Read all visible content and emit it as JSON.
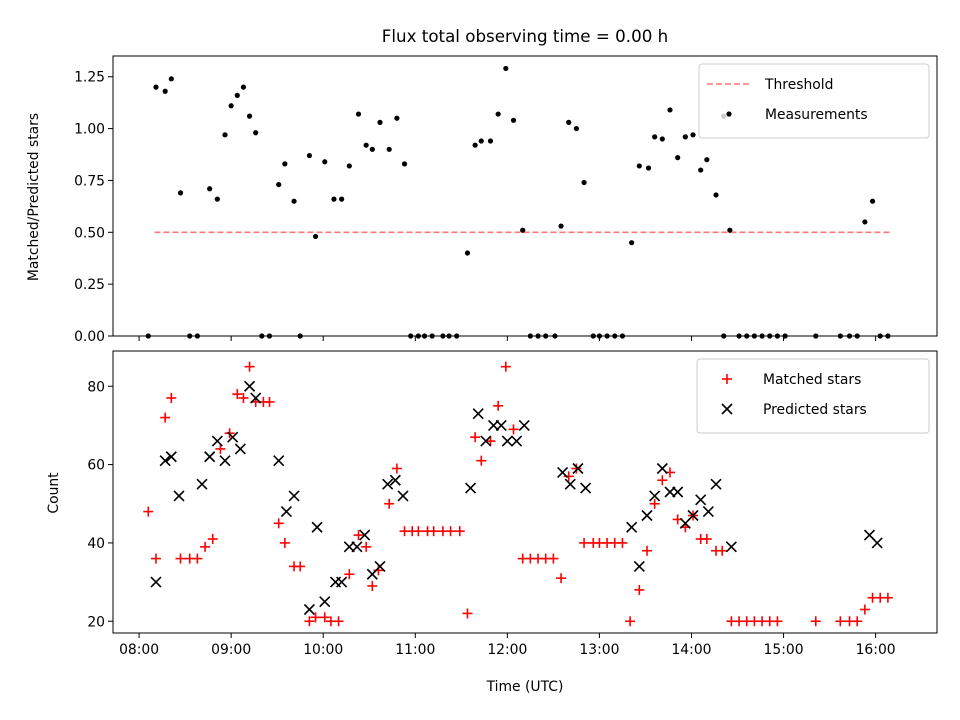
{
  "chart_data": [
    {
      "type": "scatter",
      "title": "Flux total observing time = 0.00 h",
      "xlabel": "",
      "ylabel": "Matched/Predicted stars",
      "ylim": [
        0,
        1.35
      ],
      "xlim": [
        "07:43",
        "16:40"
      ],
      "yticks": [
        "0.00",
        "0.25",
        "0.50",
        "0.75",
        "1.00",
        "1.25"
      ],
      "legend": "top-right",
      "threshold": {
        "name": "Threshold",
        "y": 0.5,
        "x_range": [
          "08:10",
          "16:10"
        ],
        "color": "#ff7777",
        "style": "dashed"
      },
      "series": [
        {
          "name": "Measurements",
          "color": "#000000",
          "points": [
            [
              "08:06",
              0.0
            ],
            [
              "08:11",
              1.2
            ],
            [
              "08:17",
              1.18
            ],
            [
              "08:21",
              1.24
            ],
            [
              "08:27",
              0.69
            ],
            [
              "08:33",
              0.0
            ],
            [
              "08:38",
              0.0
            ],
            [
              "08:46",
              0.71
            ],
            [
              "08:51",
              0.66
            ],
            [
              "08:56",
              0.97
            ],
            [
              "09:00",
              1.11
            ],
            [
              "09:04",
              1.16
            ],
            [
              "09:08",
              1.2
            ],
            [
              "09:12",
              1.06
            ],
            [
              "09:16",
              0.98
            ],
            [
              "09:20",
              0.0
            ],
            [
              "09:25",
              0.0
            ],
            [
              "09:31",
              0.73
            ],
            [
              "09:35",
              0.83
            ],
            [
              "09:41",
              0.65
            ],
            [
              "09:45",
              0.0
            ],
            [
              "09:51",
              0.87
            ],
            [
              "09:55",
              0.48
            ],
            [
              "10:01",
              0.84
            ],
            [
              "10:07",
              0.66
            ],
            [
              "10:12",
              0.66
            ],
            [
              "10:17",
              0.82
            ],
            [
              "10:23",
              1.07
            ],
            [
              "10:28",
              0.92
            ],
            [
              "10:32",
              0.9
            ],
            [
              "10:37",
              1.03
            ],
            [
              "10:43",
              0.9
            ],
            [
              "10:48",
              1.05
            ],
            [
              "10:53",
              0.83
            ],
            [
              "10:57",
              0.0
            ],
            [
              "11:02",
              0.0
            ],
            [
              "11:06",
              0.0
            ],
            [
              "11:11",
              0.0
            ],
            [
              "11:18",
              0.0
            ],
            [
              "11:22",
              0.0
            ],
            [
              "11:27",
              0.0
            ],
            [
              "11:34",
              0.4
            ],
            [
              "11:39",
              0.92
            ],
            [
              "11:43",
              0.94
            ],
            [
              "11:49",
              0.94
            ],
            [
              "11:54",
              1.07
            ],
            [
              "11:59",
              1.29
            ],
            [
              "12:04",
              1.04
            ],
            [
              "12:10",
              0.51
            ],
            [
              "12:15",
              0.0
            ],
            [
              "12:20",
              0.0
            ],
            [
              "12:25",
              0.0
            ],
            [
              "12:31",
              0.0
            ],
            [
              "12:35",
              0.53
            ],
            [
              "12:40",
              1.03
            ],
            [
              "12:45",
              1.0
            ],
            [
              "12:50",
              0.74
            ],
            [
              "12:56",
              0.0
            ],
            [
              "13:00",
              0.0
            ],
            [
              "13:05",
              0.0
            ],
            [
              "13:10",
              0.0
            ],
            [
              "13:15",
              0.0
            ],
            [
              "13:21",
              0.45
            ],
            [
              "13:26",
              0.82
            ],
            [
              "13:32",
              0.81
            ],
            [
              "13:36",
              0.96
            ],
            [
              "13:41",
              0.95
            ],
            [
              "13:46",
              1.09
            ],
            [
              "13:51",
              0.86
            ],
            [
              "13:56",
              0.96
            ],
            [
              "14:01",
              0.97
            ],
            [
              "14:06",
              0.8
            ],
            [
              "14:10",
              0.85
            ],
            [
              "14:16",
              0.68
            ],
            [
              "14:21",
              1.06
            ],
            [
              "14:21",
              0.0
            ],
            [
              "14:25",
              0.51
            ],
            [
              "14:31",
              0.0
            ],
            [
              "14:36",
              0.0
            ],
            [
              "14:41",
              0.0
            ],
            [
              "14:46",
              0.0
            ],
            [
              "14:51",
              0.0
            ],
            [
              "14:56",
              0.0
            ],
            [
              "15:01",
              0.0
            ],
            [
              "15:21",
              0.0
            ],
            [
              "15:37",
              0.0
            ],
            [
              "15:43",
              0.0
            ],
            [
              "15:48",
              0.0
            ],
            [
              "15:53",
              0.55
            ],
            [
              "15:58",
              0.65
            ],
            [
              "16:03",
              0.0
            ],
            [
              "16:08",
              0.0
            ]
          ]
        }
      ]
    },
    {
      "type": "scatter",
      "title": "",
      "xlabel": "Time (UTC)",
      "ylabel": "Count",
      "ylim": [
        17,
        89
      ],
      "xlim": [
        "07:43",
        "16:40"
      ],
      "yticks": [
        "20",
        "40",
        "60",
        "80"
      ],
      "xticks": [
        "08:00",
        "09:00",
        "10:00",
        "11:00",
        "12:00",
        "13:00",
        "14:00",
        "15:00",
        "16:00"
      ],
      "legend": "top-right",
      "series": [
        {
          "name": "Matched stars",
          "color": "#ff0000",
          "marker": "plus",
          "points": [
            [
              "08:06",
              48
            ],
            [
              "08:11",
              36
            ],
            [
              "08:17",
              72
            ],
            [
              "08:21",
              77
            ],
            [
              "08:27",
              36
            ],
            [
              "08:33",
              36
            ],
            [
              "08:38",
              36
            ],
            [
              "08:43",
              39
            ],
            [
              "08:48",
              41
            ],
            [
              "08:53",
              64
            ],
            [
              "08:59",
              68
            ],
            [
              "09:04",
              78
            ],
            [
              "09:08",
              77
            ],
            [
              "09:12",
              85
            ],
            [
              "09:16",
              76
            ],
            [
              "09:21",
              76
            ],
            [
              "09:25",
              76
            ],
            [
              "09:31",
              45
            ],
            [
              "09:35",
              40
            ],
            [
              "09:41",
              34
            ],
            [
              "09:45",
              34
            ],
            [
              "09:51",
              20
            ],
            [
              "09:55",
              21
            ],
            [
              "10:01",
              21
            ],
            [
              "10:05",
              20
            ],
            [
              "10:10",
              20
            ],
            [
              "10:17",
              32
            ],
            [
              "10:23",
              42
            ],
            [
              "10:28",
              39
            ],
            [
              "10:32",
              29
            ],
            [
              "10:36",
              33
            ],
            [
              "10:43",
              50
            ],
            [
              "10:48",
              59
            ],
            [
              "10:53",
              43
            ],
            [
              "10:58",
              43
            ],
            [
              "11:02",
              43
            ],
            [
              "11:08",
              43
            ],
            [
              "11:12",
              43
            ],
            [
              "11:18",
              43
            ],
            [
              "11:23",
              43
            ],
            [
              "11:29",
              43
            ],
            [
              "11:34",
              22
            ],
            [
              "11:39",
              67
            ],
            [
              "11:43",
              61
            ],
            [
              "11:49",
              66
            ],
            [
              "11:54",
              75
            ],
            [
              "11:59",
              85
            ],
            [
              "12:04",
              69
            ],
            [
              "12:10",
              36
            ],
            [
              "12:15",
              36
            ],
            [
              "12:20",
              36
            ],
            [
              "12:25",
              36
            ],
            [
              "12:30",
              36
            ],
            [
              "12:35",
              31
            ],
            [
              "12:40",
              57
            ],
            [
              "12:45",
              59
            ],
            [
              "12:50",
              40
            ],
            [
              "12:56",
              40
            ],
            [
              "13:00",
              40
            ],
            [
              "13:05",
              40
            ],
            [
              "13:10",
              40
            ],
            [
              "13:15",
              40
            ],
            [
              "13:20",
              20
            ],
            [
              "13:26",
              28
            ],
            [
              "13:31",
              38
            ],
            [
              "13:36",
              50
            ],
            [
              "13:41",
              56
            ],
            [
              "13:46",
              58
            ],
            [
              "13:51",
              46
            ],
            [
              "13:56",
              44
            ],
            [
              "14:01",
              47
            ],
            [
              "14:06",
              41
            ],
            [
              "14:10",
              41
            ],
            [
              "14:16",
              38
            ],
            [
              "14:20",
              38
            ],
            [
              "14:26",
              20
            ],
            [
              "14:31",
              20
            ],
            [
              "14:36",
              20
            ],
            [
              "14:41",
              20
            ],
            [
              "14:46",
              20
            ],
            [
              "14:51",
              20
            ],
            [
              "14:56",
              20
            ],
            [
              "15:21",
              20
            ],
            [
              "15:37",
              20
            ],
            [
              "15:43",
              20
            ],
            [
              "15:48",
              20
            ],
            [
              "15:53",
              23
            ],
            [
              "15:58",
              26
            ],
            [
              "16:03",
              26
            ],
            [
              "16:08",
              26
            ]
          ]
        },
        {
          "name": "Predicted stars",
          "color": "#000000",
          "marker": "x",
          "points": [
            [
              "08:11",
              30
            ],
            [
              "08:17",
              61
            ],
            [
              "08:21",
              62
            ],
            [
              "08:26",
              52
            ],
            [
              "08:41",
              55
            ],
            [
              "08:46",
              62
            ],
            [
              "08:51",
              66
            ],
            [
              "08:56",
              61
            ],
            [
              "09:01",
              67
            ],
            [
              "09:06",
              64
            ],
            [
              "09:12",
              80
            ],
            [
              "09:16",
              77
            ],
            [
              "09:31",
              61
            ],
            [
              "09:36",
              48
            ],
            [
              "09:41",
              52
            ],
            [
              "09:51",
              23
            ],
            [
              "09:56",
              44
            ],
            [
              "10:01",
              25
            ],
            [
              "10:08",
              30
            ],
            [
              "10:12",
              30
            ],
            [
              "10:17",
              39
            ],
            [
              "10:22",
              39
            ],
            [
              "10:27",
              42
            ],
            [
              "10:32",
              32
            ],
            [
              "10:37",
              34
            ],
            [
              "10:42",
              55
            ],
            [
              "10:47",
              56
            ],
            [
              "10:52",
              52
            ],
            [
              "11:36",
              54
            ],
            [
              "11:41",
              73
            ],
            [
              "11:46",
              66
            ],
            [
              "11:51",
              70
            ],
            [
              "11:56",
              70
            ],
            [
              "12:00",
              66
            ],
            [
              "12:06",
              66
            ],
            [
              "12:11",
              70
            ],
            [
              "12:36",
              58
            ],
            [
              "12:41",
              55
            ],
            [
              "12:46",
              59
            ],
            [
              "12:51",
              54
            ],
            [
              "13:21",
              44
            ],
            [
              "13:26",
              34
            ],
            [
              "13:31",
              47
            ],
            [
              "13:36",
              52
            ],
            [
              "13:41",
              59
            ],
            [
              "13:46",
              53
            ],
            [
              "13:51",
              53
            ],
            [
              "13:56",
              45
            ],
            [
              "14:01",
              47
            ],
            [
              "14:06",
              51
            ],
            [
              "14:11",
              48
            ],
            [
              "14:16",
              55
            ],
            [
              "14:26",
              39
            ],
            [
              "15:56",
              42
            ],
            [
              "16:01",
              40
            ]
          ]
        }
      ]
    }
  ]
}
